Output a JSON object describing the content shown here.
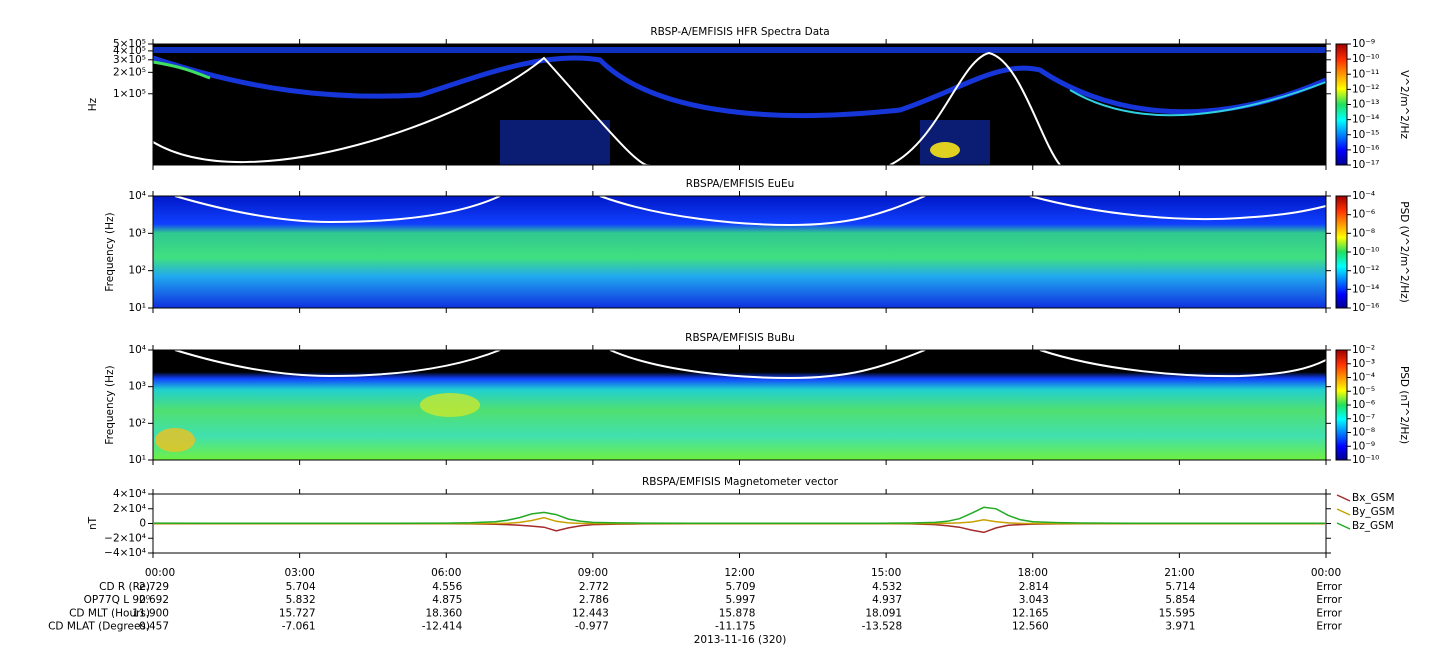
{
  "chart_data": [
    {
      "type": "spectrogram",
      "title": "RBSP-A/EMFISIS  HFR Spectra Data",
      "ylabel": "Hz",
      "log_y": true,
      "ylim": [
        10000,
        500000
      ],
      "yticks": [
        {
          "value": 500000,
          "label": "5×10⁵"
        },
        {
          "value": 400000,
          "label": "4×10⁵"
        },
        {
          "value": 300000,
          "label": "3×10⁵"
        },
        {
          "value": 200000,
          "label": "2×10⁵"
        },
        {
          "value": 100000,
          "label": "1×10⁵"
        }
      ],
      "colorbar": {
        "label": "V^2/m^2/Hz",
        "clim": [
          1e-17,
          1e-09
        ],
        "ticks": [
          {
            "value": 1e-09,
            "label": "10⁻⁹"
          },
          {
            "value": 1e-10,
            "label": "10⁻¹⁰"
          },
          {
            "value": 1e-11,
            "label": "10⁻¹¹"
          },
          {
            "value": 1e-12,
            "label": "10⁻¹²"
          },
          {
            "value": 1e-13,
            "label": "10⁻¹³"
          },
          {
            "value": 1e-14,
            "label": "10⁻¹⁴"
          },
          {
            "value": 1e-15,
            "label": "10⁻¹⁵"
          },
          {
            "value": 1e-16,
            "label": "10⁻¹⁶"
          },
          {
            "value": 1e-17,
            "label": "10⁻¹⁷"
          }
        ]
      }
    },
    {
      "type": "spectrogram",
      "title": "RBSPA/EMFISIS  EuEu",
      "ylabel": "Frequency (Hz)",
      "log_y": true,
      "ylim": [
        10,
        10000
      ],
      "yticks": [
        {
          "value": 10,
          "label": "10¹"
        },
        {
          "value": 100,
          "label": "10²"
        },
        {
          "value": 1000,
          "label": "10³"
        },
        {
          "value": 10000,
          "label": "10⁴"
        }
      ],
      "colorbar": {
        "label": "PSD (V^2/m^2/Hz)",
        "clim": [
          1e-16,
          0.0001
        ],
        "ticks": [
          {
            "value": 0.0001,
            "label": "10⁻⁴"
          },
          {
            "value": 1e-06,
            "label": "10⁻⁶"
          },
          {
            "value": 1e-08,
            "label": "10⁻⁸"
          },
          {
            "value": 1e-10,
            "label": "10⁻¹⁰"
          },
          {
            "value": 1e-12,
            "label": "10⁻¹²"
          },
          {
            "value": 1e-14,
            "label": "10⁻¹⁴"
          },
          {
            "value": 1e-16,
            "label": "10⁻¹⁶"
          }
        ]
      }
    },
    {
      "type": "spectrogram",
      "title": "RBSPA/EMFISIS  BuBu",
      "ylabel": "Frequency (Hz)",
      "log_y": true,
      "ylim": [
        10,
        10000
      ],
      "yticks": [
        {
          "value": 10,
          "label": "10¹"
        },
        {
          "value": 100,
          "label": "10²"
        },
        {
          "value": 1000,
          "label": "10³"
        },
        {
          "value": 10000,
          "label": "10⁴"
        }
      ],
      "colorbar": {
        "label": "PSD (nT^2/Hz)",
        "clim": [
          1e-10,
          0.01
        ],
        "ticks": [
          {
            "value": 0.01,
            "label": "10⁻²"
          },
          {
            "value": 0.001,
            "label": "10⁻³"
          },
          {
            "value": 0.0001,
            "label": "10⁻⁴"
          },
          {
            "value": 1e-05,
            "label": "10⁻⁵"
          },
          {
            "value": 1e-06,
            "label": "10⁻⁶"
          },
          {
            "value": 1e-07,
            "label": "10⁻⁷"
          },
          {
            "value": 1e-08,
            "label": "10⁻⁸"
          },
          {
            "value": 1e-09,
            "label": "10⁻⁹"
          },
          {
            "value": 1e-10,
            "label": "10⁻¹⁰"
          }
        ]
      }
    },
    {
      "type": "line",
      "title": "RBSPA/EMFISIS  Magnetometer vector",
      "ylabel": "nT",
      "xlabel": "2013-11-16 (320)",
      "ylim": [
        -40000,
        40000
      ],
      "yticks": [
        {
          "value": 40000,
          "label": "4×10⁴"
        },
        {
          "value": 20000,
          "label": "2×10⁴"
        },
        0,
        {
          "value": -20000,
          "label": "−2×10⁴"
        },
        {
          "value": -40000,
          "label": "−4×10⁴"
        }
      ],
      "xlim": [
        0,
        24
      ],
      "xticks": [
        {
          "value": 0,
          "label": "00:00"
        },
        {
          "value": 3,
          "label": "03:00"
        },
        {
          "value": 6,
          "label": "06:00"
        },
        {
          "value": 9,
          "label": "09:00"
        },
        {
          "value": 12,
          "label": "12:00"
        },
        {
          "value": 15,
          "label": "15:00"
        },
        {
          "value": 18,
          "label": "18:00"
        },
        {
          "value": 21,
          "label": "21:00"
        },
        {
          "value": 24,
          "label": "00:00"
        }
      ],
      "x": [
        0,
        1,
        2,
        3,
        4,
        5,
        6,
        6.5,
        7,
        7.25,
        7.5,
        7.75,
        8,
        8.25,
        8.5,
        8.75,
        9,
        9.5,
        10,
        11,
        12,
        13,
        14,
        15,
        15.5,
        16,
        16.25,
        16.5,
        16.75,
        17,
        17.25,
        17.5,
        17.75,
        18,
        18.5,
        19,
        20,
        21,
        22,
        23,
        24
      ],
      "series": [
        {
          "name": "Bx_GSM",
          "color": "#a52a2a",
          "values": [
            -300,
            -300,
            -300,
            -300,
            -300,
            -300,
            -300,
            -500,
            -1000,
            -1500,
            -2500,
            -3500,
            -5000,
            -10000,
            -6000,
            -3000,
            -1500,
            -800,
            -500,
            -300,
            -300,
            -300,
            -300,
            -300,
            -600,
            -1500,
            -3000,
            -5000,
            -9000,
            -12000,
            -6000,
            -2500,
            -1500,
            -800,
            -500,
            -300,
            -300,
            -300,
            -300,
            -300,
            -300
          ]
        },
        {
          "name": "By_GSM",
          "color": "#c8a000",
          "values": [
            -200,
            -200,
            -200,
            -200,
            -200,
            -200,
            -200,
            -200,
            0,
            300,
            1500,
            4000,
            8000,
            3000,
            800,
            200,
            0,
            -100,
            -200,
            -200,
            -200,
            -200,
            -200,
            -200,
            -200,
            0,
            300,
            800,
            2000,
            5000,
            2500,
            800,
            200,
            0,
            -100,
            -200,
            -200,
            -200,
            -200,
            -200,
            -200
          ]
        },
        {
          "name": "Bz_GSM",
          "color": "#22aa22",
          "values": [
            500,
            400,
            300,
            300,
            300,
            400,
            600,
            1000,
            2500,
            4500,
            8000,
            13000,
            15000,
            12000,
            6000,
            3000,
            1500,
            800,
            500,
            300,
            300,
            300,
            300,
            400,
            700,
            1500,
            3000,
            6500,
            14000,
            22000,
            20000,
            11000,
            5000,
            2500,
            1200,
            700,
            400,
            300,
            300,
            300,
            400
          ]
        }
      ]
    }
  ],
  "ephemeris": {
    "rows": [
      {
        "label": "CD R (Re)",
        "values": [
          "2.729",
          "5.704",
          "4.556",
          "2.772",
          "5.709",
          "4.532",
          "2.814",
          "5.714",
          "Error"
        ]
      },
      {
        "label": "OP77Q L 90⁰",
        "values": [
          "2.692",
          "5.832",
          "4.875",
          "2.786",
          "5.997",
          "4.937",
          "3.043",
          "5.854",
          "Error"
        ]
      },
      {
        "label": "CD MLT (Hours)",
        "values": [
          "11.900",
          "15.727",
          "18.360",
          "12.443",
          "15.878",
          "18.091",
          "12.165",
          "15.595",
          "Error"
        ]
      },
      {
        "label": "CD MLAT (Degrees)",
        "values": [
          "0.457",
          "-7.061",
          "-12.414",
          "-0.977",
          "-11.175",
          "-13.528",
          "12.560",
          "3.971",
          "Error"
        ]
      }
    ]
  }
}
